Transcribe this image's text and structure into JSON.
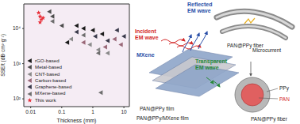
{
  "chart_data": {
    "type": "scatter",
    "x_label": "Thickness (mm)",
    "y_label": "SSE/t (dB·cm²·g⁻¹)",
    "log": true,
    "grid": false,
    "legend": "lower left",
    "xlim": [
      0.006,
      15
    ],
    "ylim": [
      60,
      50000
    ],
    "xticks": [
      0.01,
      0.1,
      1,
      10
    ],
    "yticks": [
      {
        "value": 100,
        "label": "10²"
      },
      {
        "value": 1000,
        "label": "10³"
      },
      {
        "value": 10000,
        "label": "10⁴"
      }
    ],
    "series": [
      {
        "name": "rGO-based",
        "color": "#1a1a1a",
        "marker": "triangle-left",
        "x": [
          0.3,
          0.5,
          1.0,
          2.0,
          0.15
        ],
        "values": [
          12000,
          10000,
          9000,
          7000,
          4000
        ]
      },
      {
        "name": "Metal-based",
        "color": "#4d4d4d",
        "marker": "triangle-left",
        "x": [
          0.04,
          0.05,
          0.1
        ],
        "values": [
          30000,
          22000,
          12000
        ]
      },
      {
        "name": "CNT-based",
        "color": "#8a8a8a",
        "marker": "triangle-left",
        "x": [
          0.2,
          0.8,
          1.5,
          3.0
        ],
        "values": [
          5000,
          3500,
          2500,
          2000
        ]
      },
      {
        "name": "Carbon-based",
        "color": "#9a6878",
        "marker": "triangle-left",
        "x": [
          0.5,
          2.5,
          5.0,
          8.0
        ],
        "values": [
          4000,
          3000,
          5000,
          3500
        ]
      },
      {
        "name": "Graphene-based",
        "color": "#3a3a4a",
        "marker": "triangle-left",
        "x": [
          0.3,
          1.2,
          3.0,
          6.0,
          10.0
        ],
        "values": [
          8000,
          6000,
          4500,
          9000,
          6000
        ]
      },
      {
        "name": "MXene-based",
        "color": "#6e6e6e",
        "marker": "triangle-left",
        "x": [
          0.05,
          0.5,
          1.5,
          1.8
        ],
        "values": [
          16000,
          6500,
          2000,
          150
        ]
      },
      {
        "name": "This work",
        "color": "#e8303a",
        "marker": "star",
        "x": [
          0.018,
          0.02,
          0.022,
          0.025,
          0.02
        ],
        "values": [
          28000,
          22000,
          18000,
          20000,
          15000
        ]
      }
    ]
  },
  "diagram": {
    "labels": [
      {
        "lines": [
          "Reflected",
          "EM wave"
        ],
        "color": "#2a4fa8"
      },
      {
        "lines": [
          "Incident",
          "EM wave"
        ],
        "color": "#d42a2a"
      },
      {
        "lines": [
          "MXene"
        ],
        "color": "#2a4fa8"
      },
      {
        "lines": [
          "Transparent",
          "EM wave"
        ],
        "color": "#2a8a3a"
      },
      {
        "lines": [
          "PAN@PPy film"
        ],
        "color": "#222222"
      },
      {
        "lines": [
          "PAN@PPy/MXene film"
        ],
        "color": "#222222"
      },
      {
        "lines": [
          "Microcurrent"
        ],
        "color": "#222222"
      },
      {
        "lines": [
          "PAN@PPy fiber"
        ],
        "color": "#222222"
      },
      {
        "lines": [
          "PAN@PPy fiber"
        ],
        "color": "#222222"
      },
      {
        "lines": [
          "PPy"
        ],
        "color": "#222222"
      },
      {
        "lines": [
          "PAN"
        ],
        "color": "#d42a2a"
      }
    ]
  }
}
